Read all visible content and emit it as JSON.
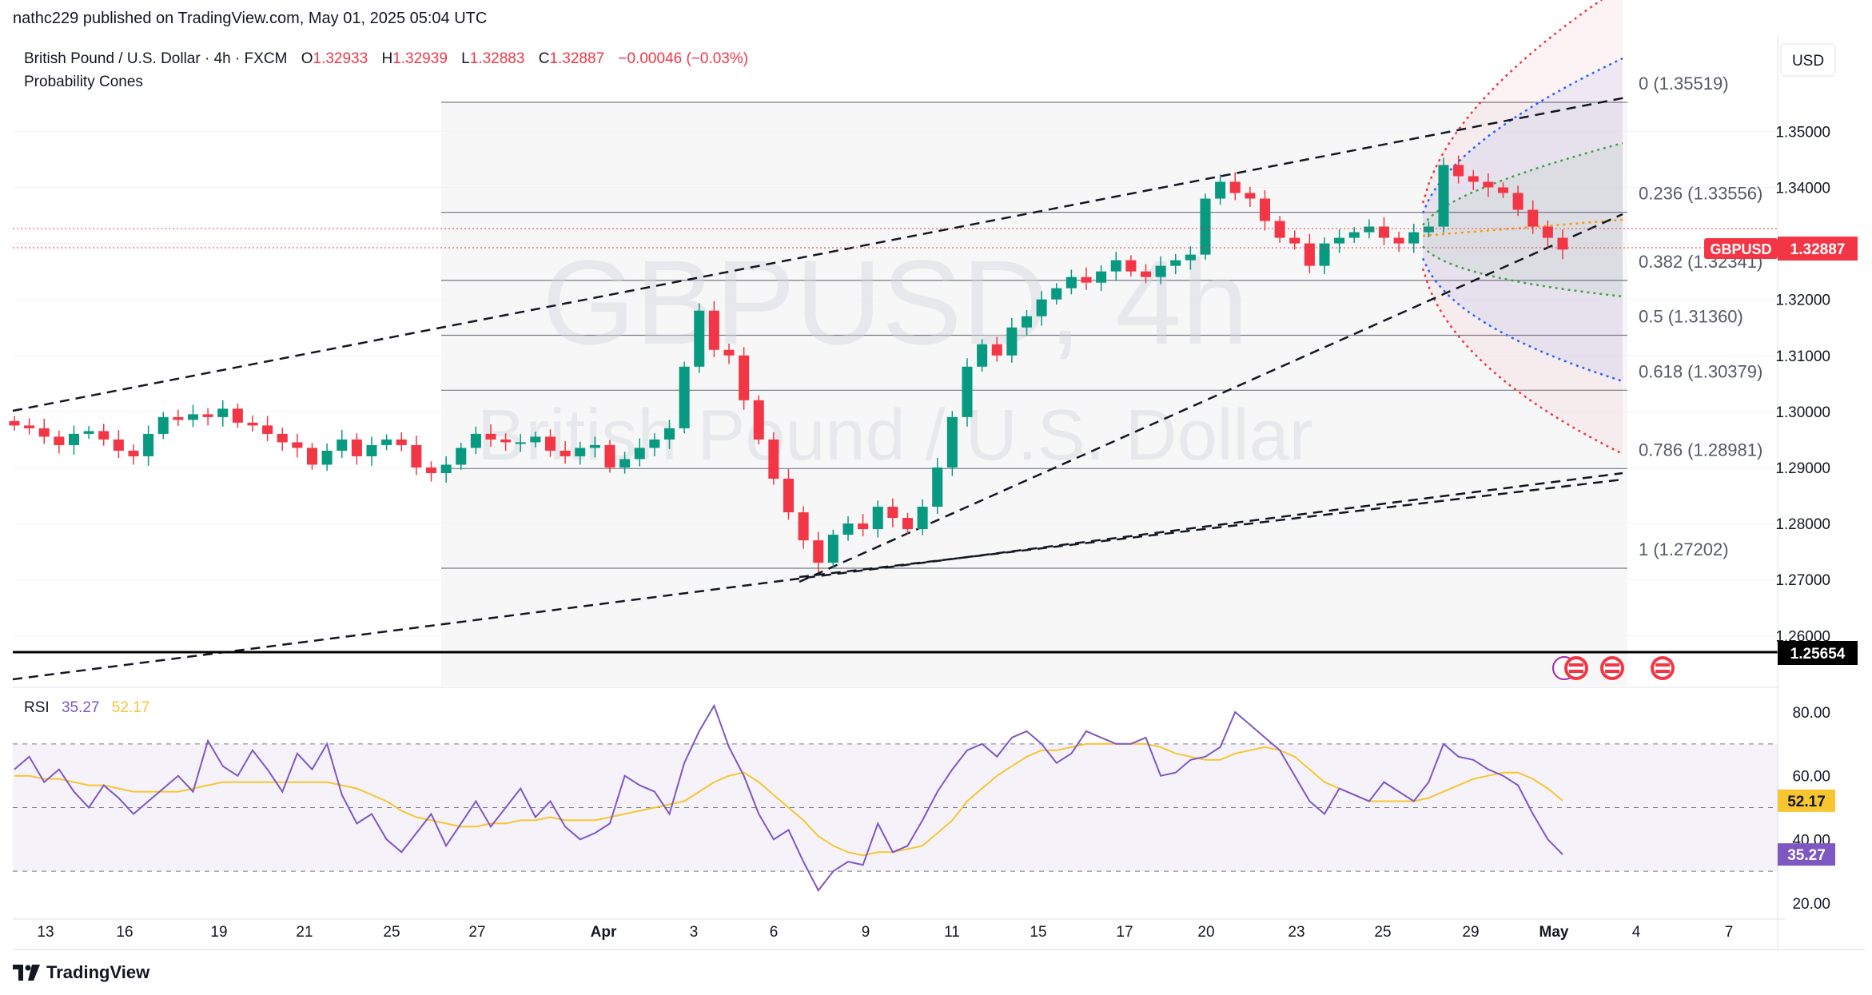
{
  "header": {
    "publisher": "nathc229 published on TradingView.com, May 01, 2025 05:04 UTC"
  },
  "legend": {
    "symbol": "British Pound / U.S. Dollar · 4h · FXCM",
    "o_label": "O",
    "o": "1.32933",
    "h_label": "H",
    "h": "1.32939",
    "l_label": "L",
    "l": "1.32883",
    "c_label": "C",
    "c": "1.32887",
    "change": "−0.00046 (−0.03%)",
    "indicator": "Probability Cones"
  },
  "watermark": {
    "symbol": "GBPUSD, 4h",
    "name": "British Pound / U.S. Dollar"
  },
  "currency_button": "USD",
  "price_tag": {
    "symbol": "GBPUSD",
    "price": "1.32887"
  },
  "hline_tag": "1.25654",
  "rsi_legend": {
    "name": "RSI",
    "value": "35.27",
    "ma": "52.17"
  },
  "footer": {
    "brand": "TradingView"
  },
  "colors": {
    "up": "#089981",
    "down": "#f23645",
    "rsi": "#7e57c2",
    "rsi_ma": "#f7c631",
    "fib": "#787b86"
  },
  "chart_data": [
    {
      "type": "candlestick",
      "title": "British Pound / U.S. Dollar · 4h · FXCM",
      "ylim": [
        1.25,
        1.362
      ],
      "y_ticks": [
        "1.35000",
        "1.34000",
        "1.33000",
        "1.32000",
        "1.31000",
        "1.30000",
        "1.29000",
        "1.28000",
        "1.27000",
        "1.26000"
      ],
      "x_ticks": [
        "13",
        "16",
        "19",
        "21",
        "25",
        "27",
        "Apr",
        "3",
        "6",
        "9",
        "11",
        "15",
        "17",
        "20",
        "23",
        "25",
        "29",
        "May",
        "4",
        "7"
      ],
      "series_close_path": [
        1.2975,
        1.297,
        1.2955,
        1.294,
        1.296,
        1.2965,
        1.295,
        1.293,
        1.292,
        1.296,
        1.299,
        1.2985,
        1.2995,
        1.299,
        1.3005,
        1.298,
        1.2975,
        1.296,
        1.2945,
        1.2935,
        1.2905,
        1.293,
        1.295,
        1.292,
        1.294,
        1.295,
        1.294,
        1.29,
        1.289,
        1.2905,
        1.2935,
        1.296,
        1.295,
        1.2945,
        1.2945,
        1.2955,
        1.293,
        1.292,
        1.2935,
        1.294,
        1.29,
        1.2915,
        1.2935,
        1.295,
        1.297,
        1.308,
        1.318,
        1.311,
        1.31,
        1.302,
        1.295,
        1.288,
        1.282,
        1.277,
        1.273,
        1.278,
        1.28,
        1.279,
        1.283,
        1.281,
        1.279,
        1.283,
        1.29,
        1.299,
        1.308,
        1.312,
        1.31,
        1.315,
        1.317,
        1.32,
        1.322,
        1.324,
        1.323,
        1.325,
        1.327,
        1.325,
        1.324,
        1.326,
        1.327,
        1.328,
        1.338,
        1.341,
        1.339,
        1.338,
        1.334,
        1.331,
        1.33,
        1.326,
        1.33,
        1.331,
        1.332,
        1.333,
        1.331,
        1.33,
        1.332,
        1.333,
        1.344,
        1.342,
        1.341,
        1.34,
        1.339,
        1.336,
        1.333,
        1.331,
        1.3289
      ],
      "fibonacci": [
        {
          "level": "0",
          "price": "1.35519"
        },
        {
          "level": "0.236",
          "price": "1.33556"
        },
        {
          "level": "0.382",
          "price": "1.32341"
        },
        {
          "level": "0.5",
          "price": "1.31360"
        },
        {
          "level": "0.618",
          "price": "1.30379"
        },
        {
          "level": "0.786",
          "price": "1.28981"
        },
        {
          "level": "1",
          "price": "1.27202"
        }
      ],
      "horizontal_line": 1.25654,
      "last_price": 1.32887
    },
    {
      "type": "line",
      "title": "RSI",
      "ylim": [
        15,
        88
      ],
      "y_ticks": [
        "80.00",
        "60.00",
        "40.00",
        "20.00"
      ],
      "bands": [
        70,
        50,
        30
      ],
      "series": [
        {
          "name": "RSI",
          "last": 35.27
        },
        {
          "name": "RSI-based MA",
          "last": 52.17
        }
      ],
      "rsi_values": [
        62,
        66,
        58,
        62,
        55,
        50,
        57,
        53,
        48,
        52,
        56,
        60,
        55,
        71,
        63,
        60,
        68,
        62,
        55,
        67,
        62,
        70,
        54,
        45,
        48,
        40,
        36,
        42,
        48,
        38,
        45,
        52,
        44,
        50,
        56,
        47,
        52,
        44,
        40,
        42,
        45,
        60,
        57,
        55,
        48,
        64,
        74,
        82,
        69,
        60,
        48,
        40,
        43,
        33,
        24,
        30,
        33,
        32,
        45,
        36,
        38,
        46,
        55,
        62,
        68,
        70,
        66,
        72,
        74,
        70,
        64,
        67,
        74,
        72,
        70,
        70,
        72,
        60,
        61,
        65,
        66,
        69,
        80,
        76,
        72,
        68,
        60,
        52,
        48,
        56,
        54,
        52,
        58,
        55,
        52,
        58,
        70,
        66,
        65,
        62,
        60,
        57,
        48,
        40,
        35.27
      ],
      "ma_values": [
        60,
        60,
        59,
        59,
        58,
        57,
        57,
        56,
        55,
        55,
        55,
        55,
        56,
        57,
        58,
        58,
        58,
        58,
        58,
        58,
        58,
        58,
        57,
        56,
        54,
        52,
        49,
        47,
        46,
        45,
        44,
        44,
        45,
        45,
        46,
        46,
        47,
        46,
        46,
        46,
        47,
        48,
        49,
        50,
        51,
        52,
        55,
        58,
        60,
        61,
        58,
        54,
        50,
        46,
        41,
        38,
        36,
        35,
        36,
        36,
        37,
        38,
        42,
        46,
        52,
        56,
        60,
        63,
        66,
        68,
        68,
        69,
        70,
        70,
        70,
        70,
        70,
        69,
        67,
        66,
        65,
        65,
        67,
        68,
        69,
        68,
        66,
        62,
        58,
        56,
        54,
        52,
        52,
        52,
        52,
        53,
        55,
        57,
        59,
        60,
        61,
        61,
        59,
        56,
        52.17
      ]
    }
  ]
}
